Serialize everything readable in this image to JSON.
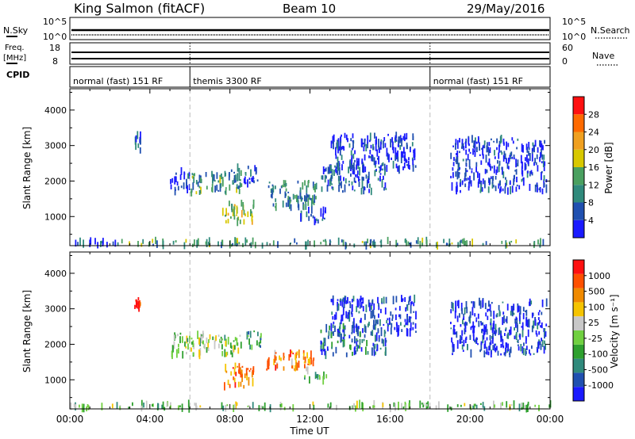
{
  "header": {
    "station": "King Salmon (fitACF)",
    "beam": "Beam 10",
    "date": "29/May/2016"
  },
  "nsky_panel": {
    "left_label": "N.Sky",
    "right_label": "N.Search",
    "left_ticks": [
      "10^5",
      "10^0"
    ],
    "right_ticks": [
      "10^5",
      "10^0"
    ]
  },
  "freq_panel": {
    "left_label_top": "Freq.",
    "left_label_unit": "[MHz]",
    "right_label": "Nave",
    "left_ticks": [
      "18",
      "8"
    ],
    "right_ticks": [
      "60",
      "0"
    ]
  },
  "cpid": {
    "label": "CPID",
    "segments": [
      {
        "start_h": 0,
        "end_h": 6,
        "text": "normal (fast) 151 RF"
      },
      {
        "start_h": 6,
        "end_h": 18,
        "text": "themis 3300 RF"
      },
      {
        "start_h": 18,
        "end_h": 24,
        "text": "normal (fast) 151 RF"
      }
    ]
  },
  "x_axis": {
    "title": "Time UT",
    "ticks": [
      "00:00",
      "04:00",
      "08:00",
      "12:00",
      "16:00",
      "20:00",
      "00:00"
    ],
    "tick_hours": [
      0,
      4,
      8,
      12,
      16,
      20,
      24
    ],
    "range_hours": [
      0,
      24
    ]
  },
  "mode_change_hours": [
    6,
    18
  ],
  "chart_data": [
    {
      "type": "heatmap",
      "quantity": "Power",
      "ylabel": "Slant Range [km]",
      "ylim": [
        180,
        4600
      ],
      "yticks": [
        1000,
        2000,
        3000,
        4000
      ],
      "colorbar": {
        "label": "Power [dB]",
        "ticks": [
          "4",
          "8",
          "12",
          "16",
          "20",
          "24",
          "28"
        ],
        "colors": [
          "#1a1aff",
          "#2050b0",
          "#308a7c",
          "#4aa060",
          "#d8c800",
          "#f0a020",
          "#ff6a00",
          "#ff1010"
        ],
        "range": [
          0,
          32
        ]
      },
      "regions": [
        {
          "t": [
            0.0,
            2.3
          ],
          "r": [
            180,
            330
          ],
          "level": 0.15
        },
        {
          "t": [
            2.0,
            24.0
          ],
          "r": [
            180,
            330
          ],
          "level": 0.35
        },
        {
          "t": [
            3.2,
            3.5
          ],
          "r": [
            2800,
            3300
          ],
          "level": 0.15
        },
        {
          "t": [
            5.0,
            6.0
          ],
          "r": [
            1700,
            2300
          ],
          "level": 0.12
        },
        {
          "t": [
            6.0,
            8.6
          ],
          "r": [
            1650,
            2250
          ],
          "level": 0.35
        },
        {
          "t": [
            7.6,
            9.2
          ],
          "r": [
            800,
            1400
          ],
          "level": 0.5
        },
        {
          "t": [
            8.0,
            9.4
          ],
          "r": [
            1900,
            2400
          ],
          "level": 0.2
        },
        {
          "t": [
            9.8,
            12.3
          ],
          "r": [
            1250,
            2000
          ],
          "level": 0.3
        },
        {
          "t": [
            12.5,
            15.8
          ],
          "r": [
            1700,
            2500
          ],
          "level": 0.2
        },
        {
          "t": [
            13.0,
            17.3
          ],
          "r": [
            2300,
            3300
          ],
          "level": 0.1
        },
        {
          "t": [
            11.5,
            12.8
          ],
          "r": [
            800,
            1200
          ],
          "level": 0.15
        },
        {
          "t": [
            19.0,
            23.8
          ],
          "r": [
            1700,
            3200
          ],
          "level": 0.1
        }
      ]
    },
    {
      "type": "heatmap",
      "quantity": "Velocity",
      "ylabel": "Slant Range [km]",
      "ylim": [
        180,
        4600
      ],
      "yticks": [
        1000,
        2000,
        3000,
        4000
      ],
      "colorbar": {
        "label": "Velocity [m s⁻¹]",
        "ticks": [
          "1000",
          "500",
          "100",
          "25",
          "-25",
          "-100",
          "-500",
          "-1000"
        ],
        "colors": [
          "#1a1aff",
          "#2050b0",
          "#308a7c",
          "#2ea02e",
          "#70d040",
          "#c8c8c8",
          "#f5c400",
          "#f08a00",
          "#ff5000",
          "#ff1010"
        ],
        "range": [
          -1200,
          1200
        ]
      },
      "regions": [
        {
          "t": [
            0.0,
            24.0
          ],
          "r": [
            180,
            330
          ],
          "level": 0.45
        },
        {
          "t": [
            3.2,
            3.5
          ],
          "r": [
            2900,
            3300
          ],
          "level": 0.95
        },
        {
          "t": [
            5.0,
            8.6
          ],
          "r": [
            1700,
            2300
          ],
          "level": 0.45
        },
        {
          "t": [
            7.6,
            9.2
          ],
          "r": [
            800,
            1400
          ],
          "level": 0.8
        },
        {
          "t": [
            8.8,
            9.6
          ],
          "r": [
            1900,
            2400
          ],
          "level": 0.3
        },
        {
          "t": [
            9.8,
            12.3
          ],
          "r": [
            1250,
            1800
          ],
          "level": 0.75
        },
        {
          "t": [
            12.5,
            15.8
          ],
          "r": [
            1700,
            2500
          ],
          "level": 0.2
        },
        {
          "t": [
            13.0,
            17.3
          ],
          "r": [
            2300,
            3300
          ],
          "level": 0.1
        },
        {
          "t": [
            11.5,
            12.8
          ],
          "r": [
            950,
            1150
          ],
          "level": 0.35
        },
        {
          "t": [
            19.0,
            23.8
          ],
          "r": [
            1700,
            3200
          ],
          "level": 0.1
        }
      ]
    }
  ]
}
